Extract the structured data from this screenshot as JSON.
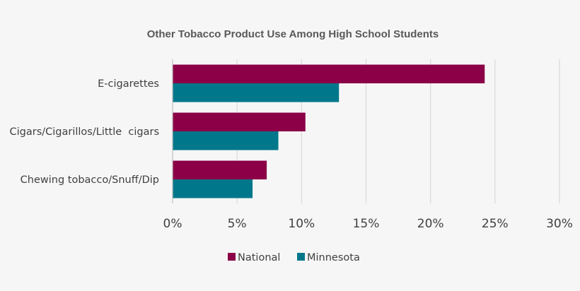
{
  "chart_data": {
    "type": "bar",
    "orientation": "horizontal",
    "title": "Other Tobacco Product Use Among High School Students",
    "xlabel": "",
    "ylabel": "",
    "categories": [
      "E-cigarettes",
      "Cigars/Cigarillos/Little  cigars",
      "Chewing tobacco/Snuff/Dip"
    ],
    "series": [
      {
        "name": "National",
        "color": "#8b0047",
        "values": [
          24.2,
          10.3,
          7.3
        ]
      },
      {
        "name": "Minnesota",
        "color": "#00778a",
        "values": [
          12.9,
          8.2,
          6.2
        ]
      }
    ],
    "xlim": [
      0,
      30
    ],
    "ticks": [
      0,
      5,
      10,
      15,
      20,
      25,
      30
    ],
    "tick_labels": [
      "0%",
      "5%",
      "10%",
      "15%",
      "20%",
      "25%",
      "30%"
    ],
    "grid": "vertical",
    "legend_position": "bottom"
  }
}
